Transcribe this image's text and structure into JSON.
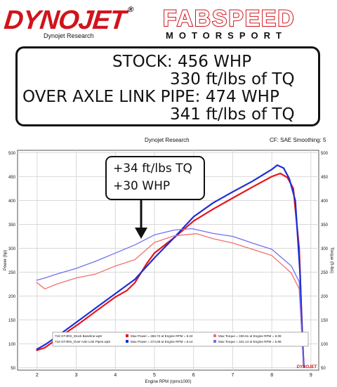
{
  "header": {
    "dynojet_logo": "DYNOJET",
    "dynojet_reg": "®",
    "dynojet_sub": "Dynojet Research",
    "fabspeed_logo": "FABSPEED",
    "fabspeed_sub": "MOTORSPORT"
  },
  "summary": {
    "line1": "STOCK: 456 WHP",
    "line2": "330 ft/lbs of TQ",
    "line3": "OVER AXLE LINK PIPE: 474 WHP",
    "line4": "341 ft/lbs of TQ"
  },
  "chart_header": {
    "center": "Dynojet Research",
    "right": "CF: SAE Smoothing: 5"
  },
  "callout": {
    "line1": "+34 ft/lbs TQ",
    "line2": "+30 WHP"
  },
  "watermark": "DYNOJET",
  "colors": {
    "stock": "#e8141c",
    "stock_torque": "#f07070",
    "pipe": "#1a2fd6",
    "pipe_torque": "#7070f0",
    "grid": "#d9d9d9"
  },
  "chart_data": {
    "type": "line",
    "xlabel": "Engine RPM (rpmx1000)",
    "ylabel": "Power (hp)",
    "y2label": "Torque (ft-lbs)",
    "xlim": [
      1.5,
      9.2
    ],
    "ylim": [
      45,
      505
    ],
    "x_ticks": [
      "2",
      "3",
      "4",
      "5",
      "6",
      "7",
      "8",
      "9"
    ],
    "y_ticks": [
      "50",
      "100",
      "150",
      "200",
      "250",
      "300",
      "350",
      "400",
      "450",
      "500"
    ],
    "grid": true,
    "series": [
      {
        "name": "718 GT4RS_Stock Baseline.wp8 — Max Power",
        "kind": "power",
        "points": [
          [
            1.98,
            86
          ],
          [
            2.2,
            92
          ],
          [
            2.5,
            110
          ],
          [
            3.0,
            138
          ],
          [
            3.5,
            168
          ],
          [
            4.0,
            198
          ],
          [
            4.3,
            212
          ],
          [
            4.5,
            228
          ],
          [
            4.8,
            268
          ],
          [
            5.0,
            290
          ],
          [
            5.5,
            322
          ],
          [
            6.0,
            357
          ],
          [
            6.5,
            382
          ],
          [
            7.0,
            405
          ],
          [
            7.5,
            428
          ],
          [
            8.0,
            450
          ],
          [
            8.22,
            456.72
          ],
          [
            8.4,
            448
          ],
          [
            8.55,
            425
          ],
          [
            8.7,
            300
          ],
          [
            8.78,
            120
          ],
          [
            8.82,
            50
          ]
        ]
      },
      {
        "name": "718 GT4RS_Over Axle Link Pipes.wp8 — Max Power",
        "kind": "power",
        "points": [
          [
            1.98,
            88
          ],
          [
            2.2,
            98
          ],
          [
            2.5,
            115
          ],
          [
            3.0,
            145
          ],
          [
            3.5,
            175
          ],
          [
            4.0,
            205
          ],
          [
            4.5,
            235
          ],
          [
            5.0,
            280
          ],
          [
            5.5,
            322
          ],
          [
            6.0,
            366
          ],
          [
            6.5,
            395
          ],
          [
            7.0,
            418
          ],
          [
            7.5,
            440
          ],
          [
            8.0,
            465
          ],
          [
            8.14,
            474.05
          ],
          [
            8.3,
            468
          ],
          [
            8.45,
            445
          ],
          [
            8.6,
            400
          ],
          [
            8.72,
            250
          ],
          [
            8.78,
            110
          ],
          [
            8.82,
            50
          ]
        ]
      },
      {
        "name": "718 GT4RS_Stock Baseline.wp8 — Max Torque",
        "kind": "torque",
        "points": [
          [
            1.98,
            229
          ],
          [
            2.2,
            215
          ],
          [
            2.5,
            225
          ],
          [
            3.0,
            238
          ],
          [
            3.5,
            246
          ],
          [
            4.0,
            263
          ],
          [
            4.5,
            276
          ],
          [
            5.0,
            312
          ],
          [
            5.5,
            326
          ],
          [
            6.08,
            330.61
          ],
          [
            6.5,
            320
          ],
          [
            7.0,
            311
          ],
          [
            7.5,
            298
          ],
          [
            8.0,
            285
          ],
          [
            8.5,
            248
          ],
          [
            8.7,
            215
          ],
          [
            8.78,
            100
          ],
          [
            8.82,
            50
          ]
        ]
      },
      {
        "name": "718 GT4RS_Over Axle Link Pipes.wp8 — Max Torque",
        "kind": "torque",
        "points": [
          [
            1.98,
            233
          ],
          [
            2.2,
            238
          ],
          [
            2.5,
            246
          ],
          [
            3.0,
            258
          ],
          [
            3.5,
            273
          ],
          [
            4.0,
            290
          ],
          [
            4.5,
            307
          ],
          [
            5.0,
            328
          ],
          [
            5.5,
            338
          ],
          [
            5.96,
            341.14
          ],
          [
            6.5,
            331
          ],
          [
            7.0,
            325
          ],
          [
            7.5,
            311
          ],
          [
            8.0,
            298
          ],
          [
            8.5,
            263
          ],
          [
            8.7,
            230
          ],
          [
            8.78,
            100
          ],
          [
            8.82,
            50
          ]
        ]
      }
    ],
    "legend": {
      "placement": "bottom",
      "rows": [
        {
          "file": "718 GT4RS_Stock Baseline.wp8",
          "power": "Max Power = 456.72 at Engine RPM = 8.22",
          "torque": "Max Torque = 330.61 at Engine RPM = 6.08"
        },
        {
          "file": "718 GT4RS_Over Axle Link Pipes.wp8",
          "power": "Max Power = 474.05 at Engine RPM = 8.14",
          "torque": "Max Torque = 341.14 at Engine RPM = 5.96"
        }
      ]
    }
  }
}
